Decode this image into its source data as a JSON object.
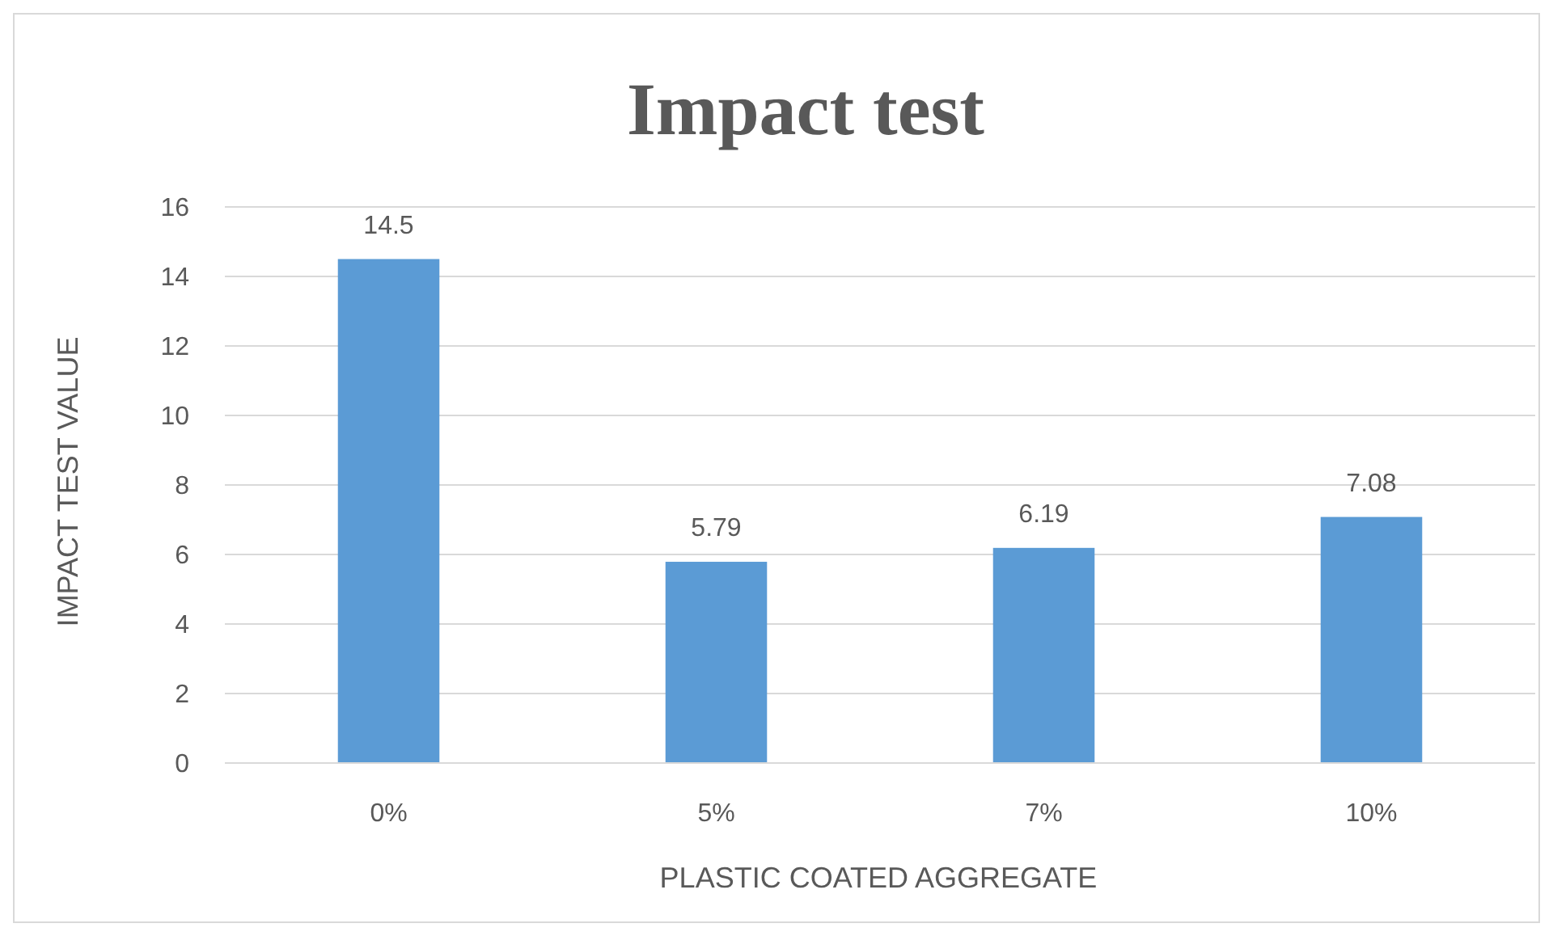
{
  "chart_data": {
    "type": "bar",
    "title": "Impact test",
    "xlabel": "PLASTIC COATED AGGREGATE",
    "ylabel": "IMPACT TEST VALUE",
    "categories": [
      "0%",
      "5%",
      "7%",
      "10%"
    ],
    "values": [
      14.5,
      5.79,
      6.19,
      7.08
    ],
    "color": "#5b9bd5",
    "ylim": [
      0,
      16
    ],
    "yticks": [
      0,
      2,
      4,
      6,
      8,
      10,
      12,
      14,
      16
    ],
    "grid": "y",
    "data_labels": true
  }
}
